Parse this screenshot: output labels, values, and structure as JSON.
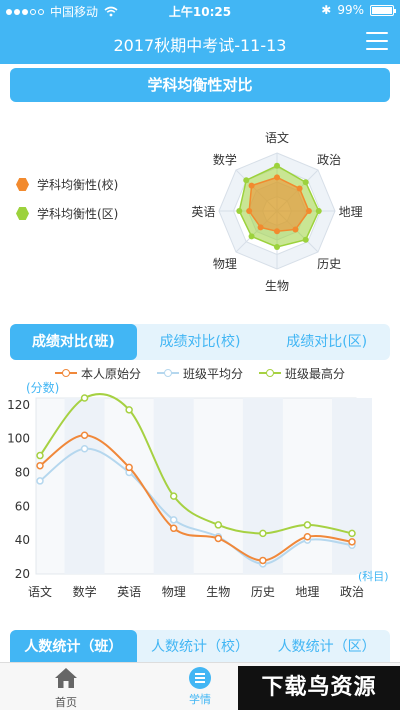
{
  "status_bar": {
    "carrier": "中国移动",
    "wifi_icon": "wifi-icon",
    "time": "上午10:25",
    "bluetooth": "✱",
    "battery_percent": "99%",
    "battery_level": 0.99
  },
  "nav": {
    "title": "2017秋期中考试-11-13",
    "menu_icon": "hamburger-menu-icon"
  },
  "balance_section": {
    "title": "学科均衡性对比",
    "legend": [
      {
        "label": "学科均衡性(校)",
        "color": "#f28a2e"
      },
      {
        "label": "学科均衡性(区)",
        "color": "#9cd23c"
      }
    ]
  },
  "radar": {
    "axes": [
      "语文",
      "政治",
      "地理",
      "历史",
      "生物",
      "物理",
      "英语",
      "数学"
    ],
    "school": [
      0.58,
      0.55,
      0.55,
      0.45,
      0.35,
      0.4,
      0.48,
      0.62
    ],
    "district": [
      0.78,
      0.7,
      0.72,
      0.7,
      0.62,
      0.62,
      0.65,
      0.75
    ],
    "school_color": "#f28a2e",
    "district_color": "#9cd23c"
  },
  "score_tabs": [
    {
      "label": "成绩对比(班)",
      "active": true
    },
    {
      "label": "成绩对比(校)",
      "active": false
    },
    {
      "label": "成绩对比(区)",
      "active": false
    }
  ],
  "chart_data": {
    "type": "line",
    "categories": [
      "语文",
      "数学",
      "英语",
      "物理",
      "生物",
      "历史",
      "地理",
      "政治"
    ],
    "series": [
      {
        "name": "本人原始分",
        "color": "#f0883a",
        "values": [
          84,
          102,
          83,
          47,
          41,
          28,
          42,
          39
        ]
      },
      {
        "name": "班级平均分",
        "color": "#b5d7ee",
        "values": [
          75,
          94,
          80,
          52,
          42,
          26,
          40,
          37
        ]
      },
      {
        "name": "班级最高分",
        "color": "#a6d142",
        "values": [
          90,
          124,
          117,
          66,
          49,
          44,
          49,
          44
        ]
      }
    ],
    "ylabel": "(分数)",
    "xlabel": "(科目)",
    "yticks": [
      20,
      40,
      60,
      80,
      100,
      120
    ],
    "ylim": [
      20,
      124
    ],
    "grid": false
  },
  "count_tabs": [
    {
      "label": "人数统计（班）",
      "active": true
    },
    {
      "label": "人数统计（校）",
      "active": false
    },
    {
      "label": "人数统计（区）",
      "active": false
    }
  ],
  "bottom_nav": [
    {
      "label": "首页",
      "icon": "home-icon",
      "active": false
    },
    {
      "label": "学情",
      "icon": "list-icon",
      "active": true
    }
  ],
  "watermark": "下载鸟资源"
}
